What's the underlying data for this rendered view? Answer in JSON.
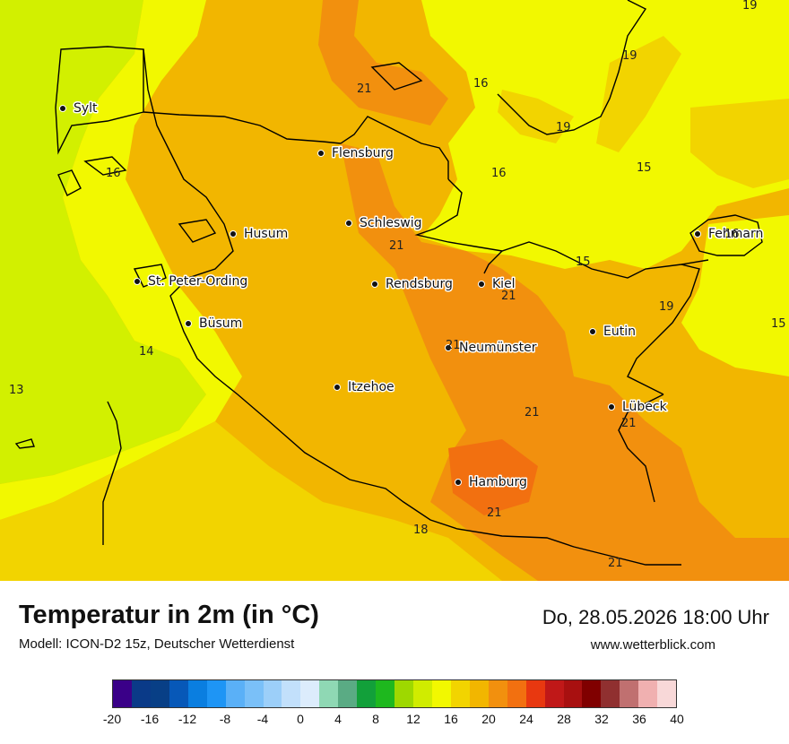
{
  "header": {
    "title": "Temperatur in 2m (in °C)",
    "subtitle": "Modell: ICON-D2 15z, Deutscher Wetterdienst",
    "datetime": "Do, 28.05.2026 18:00 Uhr",
    "website": "www.wetterblick.com"
  },
  "map": {
    "cities": [
      {
        "name": "Sylt"
      },
      {
        "name": "Flensburg"
      },
      {
        "name": "Husum"
      },
      {
        "name": "Schleswig"
      },
      {
        "name": "St. Peter-Ording"
      },
      {
        "name": "Rendsburg"
      },
      {
        "name": "Kiel"
      },
      {
        "name": "Büsum"
      },
      {
        "name": "Neumünster"
      },
      {
        "name": "Eutin"
      },
      {
        "name": "Fehmarn"
      },
      {
        "name": "Itzehoe"
      },
      {
        "name": "Lübeck"
      },
      {
        "name": "Hamburg"
      }
    ],
    "isotherm_labels": [
      "19",
      "19",
      "16",
      "21",
      "19",
      "16",
      "16",
      "15",
      "16",
      "21",
      "15",
      "21",
      "19",
      "15",
      "14",
      "21",
      "13",
      "21",
      "21",
      "21",
      "18",
      "21"
    ]
  },
  "legend": {
    "ticks": [
      "-20",
      "-16",
      "-12",
      "-8",
      "-4",
      "0",
      "4",
      "8",
      "12",
      "16",
      "20",
      "24",
      "28",
      "32",
      "36",
      "40"
    ],
    "colors": [
      "#3a0088",
      "#0a3a88",
      "#083f86",
      "#0758b8",
      "#0a7ee0",
      "#1e95f5",
      "#5ab0f7",
      "#7ac0f8",
      "#9ccff9",
      "#c2e0fb",
      "#dcecfc",
      "#8fd8b4",
      "#5aab84",
      "#12a03a",
      "#1eb81e",
      "#9ed800",
      "#d0ec00",
      "#f2f800",
      "#f2d400",
      "#f2b600",
      "#f2900e",
      "#f27010",
      "#e83810",
      "#c01818",
      "#a81010",
      "#800000",
      "#903030",
      "#c07070",
      "#f0b0b0",
      "#f8d8d8"
    ]
  },
  "colors": {
    "t13": "#d2f000",
    "t15": "#f2f800",
    "t17": "#f2d400",
    "t19": "#f2b600",
    "t21": "#f2900e",
    "t23": "#f27010"
  }
}
